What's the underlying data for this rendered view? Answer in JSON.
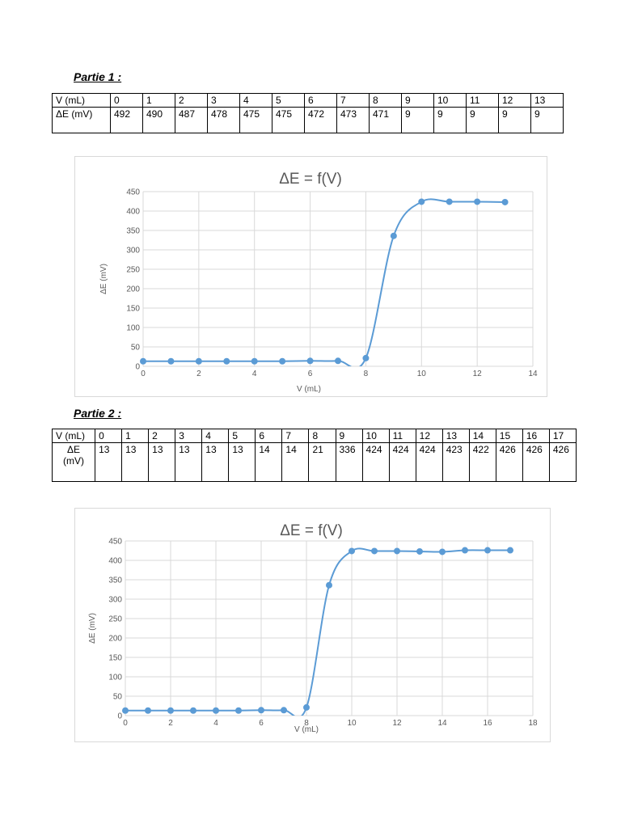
{
  "part1": {
    "heading": "Partie 1 :",
    "table": {
      "row1_label": "V (mL)",
      "row2_label": "ΔE (mV)",
      "v": [
        "0",
        "1",
        "2",
        "3",
        "4",
        "5",
        "6",
        "7",
        "8",
        "9",
        "10",
        "11",
        "12",
        "13"
      ],
      "e": [
        "492",
        "490",
        "487",
        "478",
        "475",
        "475",
        "472",
        "473",
        "471",
        "9",
        "9",
        "9",
        "9",
        "9"
      ]
    }
  },
  "part2": {
    "heading": "Partie 2 :",
    "table": {
      "row1_label": "V (mL)",
      "row2_label": "ΔE (mV)",
      "v": [
        "0",
        "1",
        "2",
        "3",
        "4",
        "5",
        "6",
        "7",
        "8",
        "9",
        "10",
        "11",
        "12",
        "13",
        "14",
        "15",
        "16",
        "17"
      ],
      "e": [
        "13",
        "13",
        "13",
        "13",
        "13",
        "13",
        "14",
        "14",
        "21",
        "336",
        "424",
        "424",
        "424",
        "423",
        "422",
        "426",
        "426",
        "426"
      ]
    }
  },
  "chart_data": [
    {
      "type": "scatter",
      "title": "ΔE = f(V)",
      "xlabel": "V (mL)",
      "ylabel": "ΔE (mV)",
      "xlim": [
        0,
        14
      ],
      "ylim": [
        0,
        450
      ],
      "xticks": [
        0,
        2,
        4,
        6,
        8,
        10,
        12,
        14
      ],
      "yticks": [
        0,
        50,
        100,
        150,
        200,
        250,
        300,
        350,
        400,
        450
      ],
      "grid": true,
      "smoothed_line": true,
      "color": "#5b9bd5",
      "x": [
        0,
        1,
        2,
        3,
        4,
        5,
        6,
        7,
        8,
        9,
        10,
        11,
        12,
        13
      ],
      "y": [
        13,
        13,
        13,
        13,
        13,
        13,
        14,
        14,
        21,
        336,
        424,
        424,
        424,
        423
      ]
    },
    {
      "type": "scatter",
      "title": "ΔE = f(V)",
      "xlabel": "V (mL)",
      "ylabel": "ΔE (mV)",
      "xlim": [
        0,
        18
      ],
      "ylim": [
        0,
        450
      ],
      "xticks": [
        0,
        2,
        4,
        6,
        8,
        10,
        12,
        14,
        16,
        18
      ],
      "yticks": [
        0,
        50,
        100,
        150,
        200,
        250,
        300,
        350,
        400,
        450
      ],
      "grid": true,
      "smoothed_line": true,
      "color": "#5b9bd5",
      "x": [
        0,
        1,
        2,
        3,
        4,
        5,
        6,
        7,
        8,
        9,
        10,
        11,
        12,
        13,
        14,
        15,
        16,
        17
      ],
      "y": [
        13,
        13,
        13,
        13,
        13,
        13,
        14,
        14,
        21,
        336,
        424,
        424,
        424,
        423,
        422,
        426,
        426,
        426
      ]
    }
  ]
}
